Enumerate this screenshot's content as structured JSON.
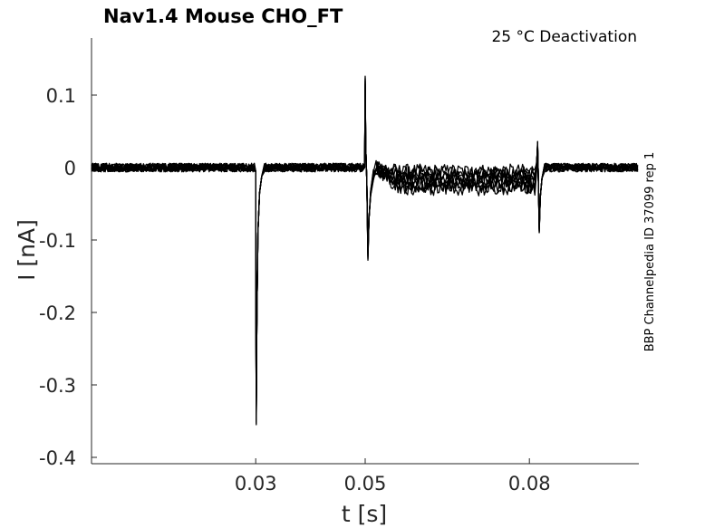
{
  "chart_data": {
    "type": "line",
    "title": "Nav1.4  Mouse  CHO_FT",
    "subtitle": "25 °C  Deactivation",
    "xlabel": "t [s]",
    "ylabel": "I [nA]",
    "side_label": "BBP Channelpedia ID 37099 rep 1",
    "xlim": [
      0,
      0.1
    ],
    "ylim": [
      -0.4,
      0.175
    ],
    "x_ticks": [
      0.03,
      0.05,
      0.08
    ],
    "x_tick_labels": [
      "0.03",
      "0.05",
      "0.08"
    ],
    "y_ticks": [
      0.1,
      0,
      -0.1,
      -0.2,
      -0.3,
      -0.4
    ],
    "y_tick_labels": [
      "0.1",
      "0",
      "-0.1",
      "-0.2",
      "-0.3",
      "-0.4"
    ],
    "grid": false,
    "line_color": "#000000",
    "n_traces": 9,
    "events": [
      {
        "t": 0.03,
        "peak": -0.36,
        "description": "activation current"
      },
      {
        "t": 0.05,
        "peak": 0.128,
        "description": "positive capacitive spike"
      },
      {
        "t": 0.0505,
        "peak": -0.13,
        "description": "tail current"
      },
      {
        "t": 0.0815,
        "peak": 0.035,
        "description": "return spike"
      },
      {
        "t": 0.0818,
        "peak": -0.093,
        "description": "negative transient"
      }
    ],
    "trace_steady_offsets_after_0_05": [
      -0.005,
      -0.008,
      -0.011,
      -0.014,
      -0.017,
      -0.02,
      -0.023,
      -0.026,
      -0.029
    ]
  }
}
